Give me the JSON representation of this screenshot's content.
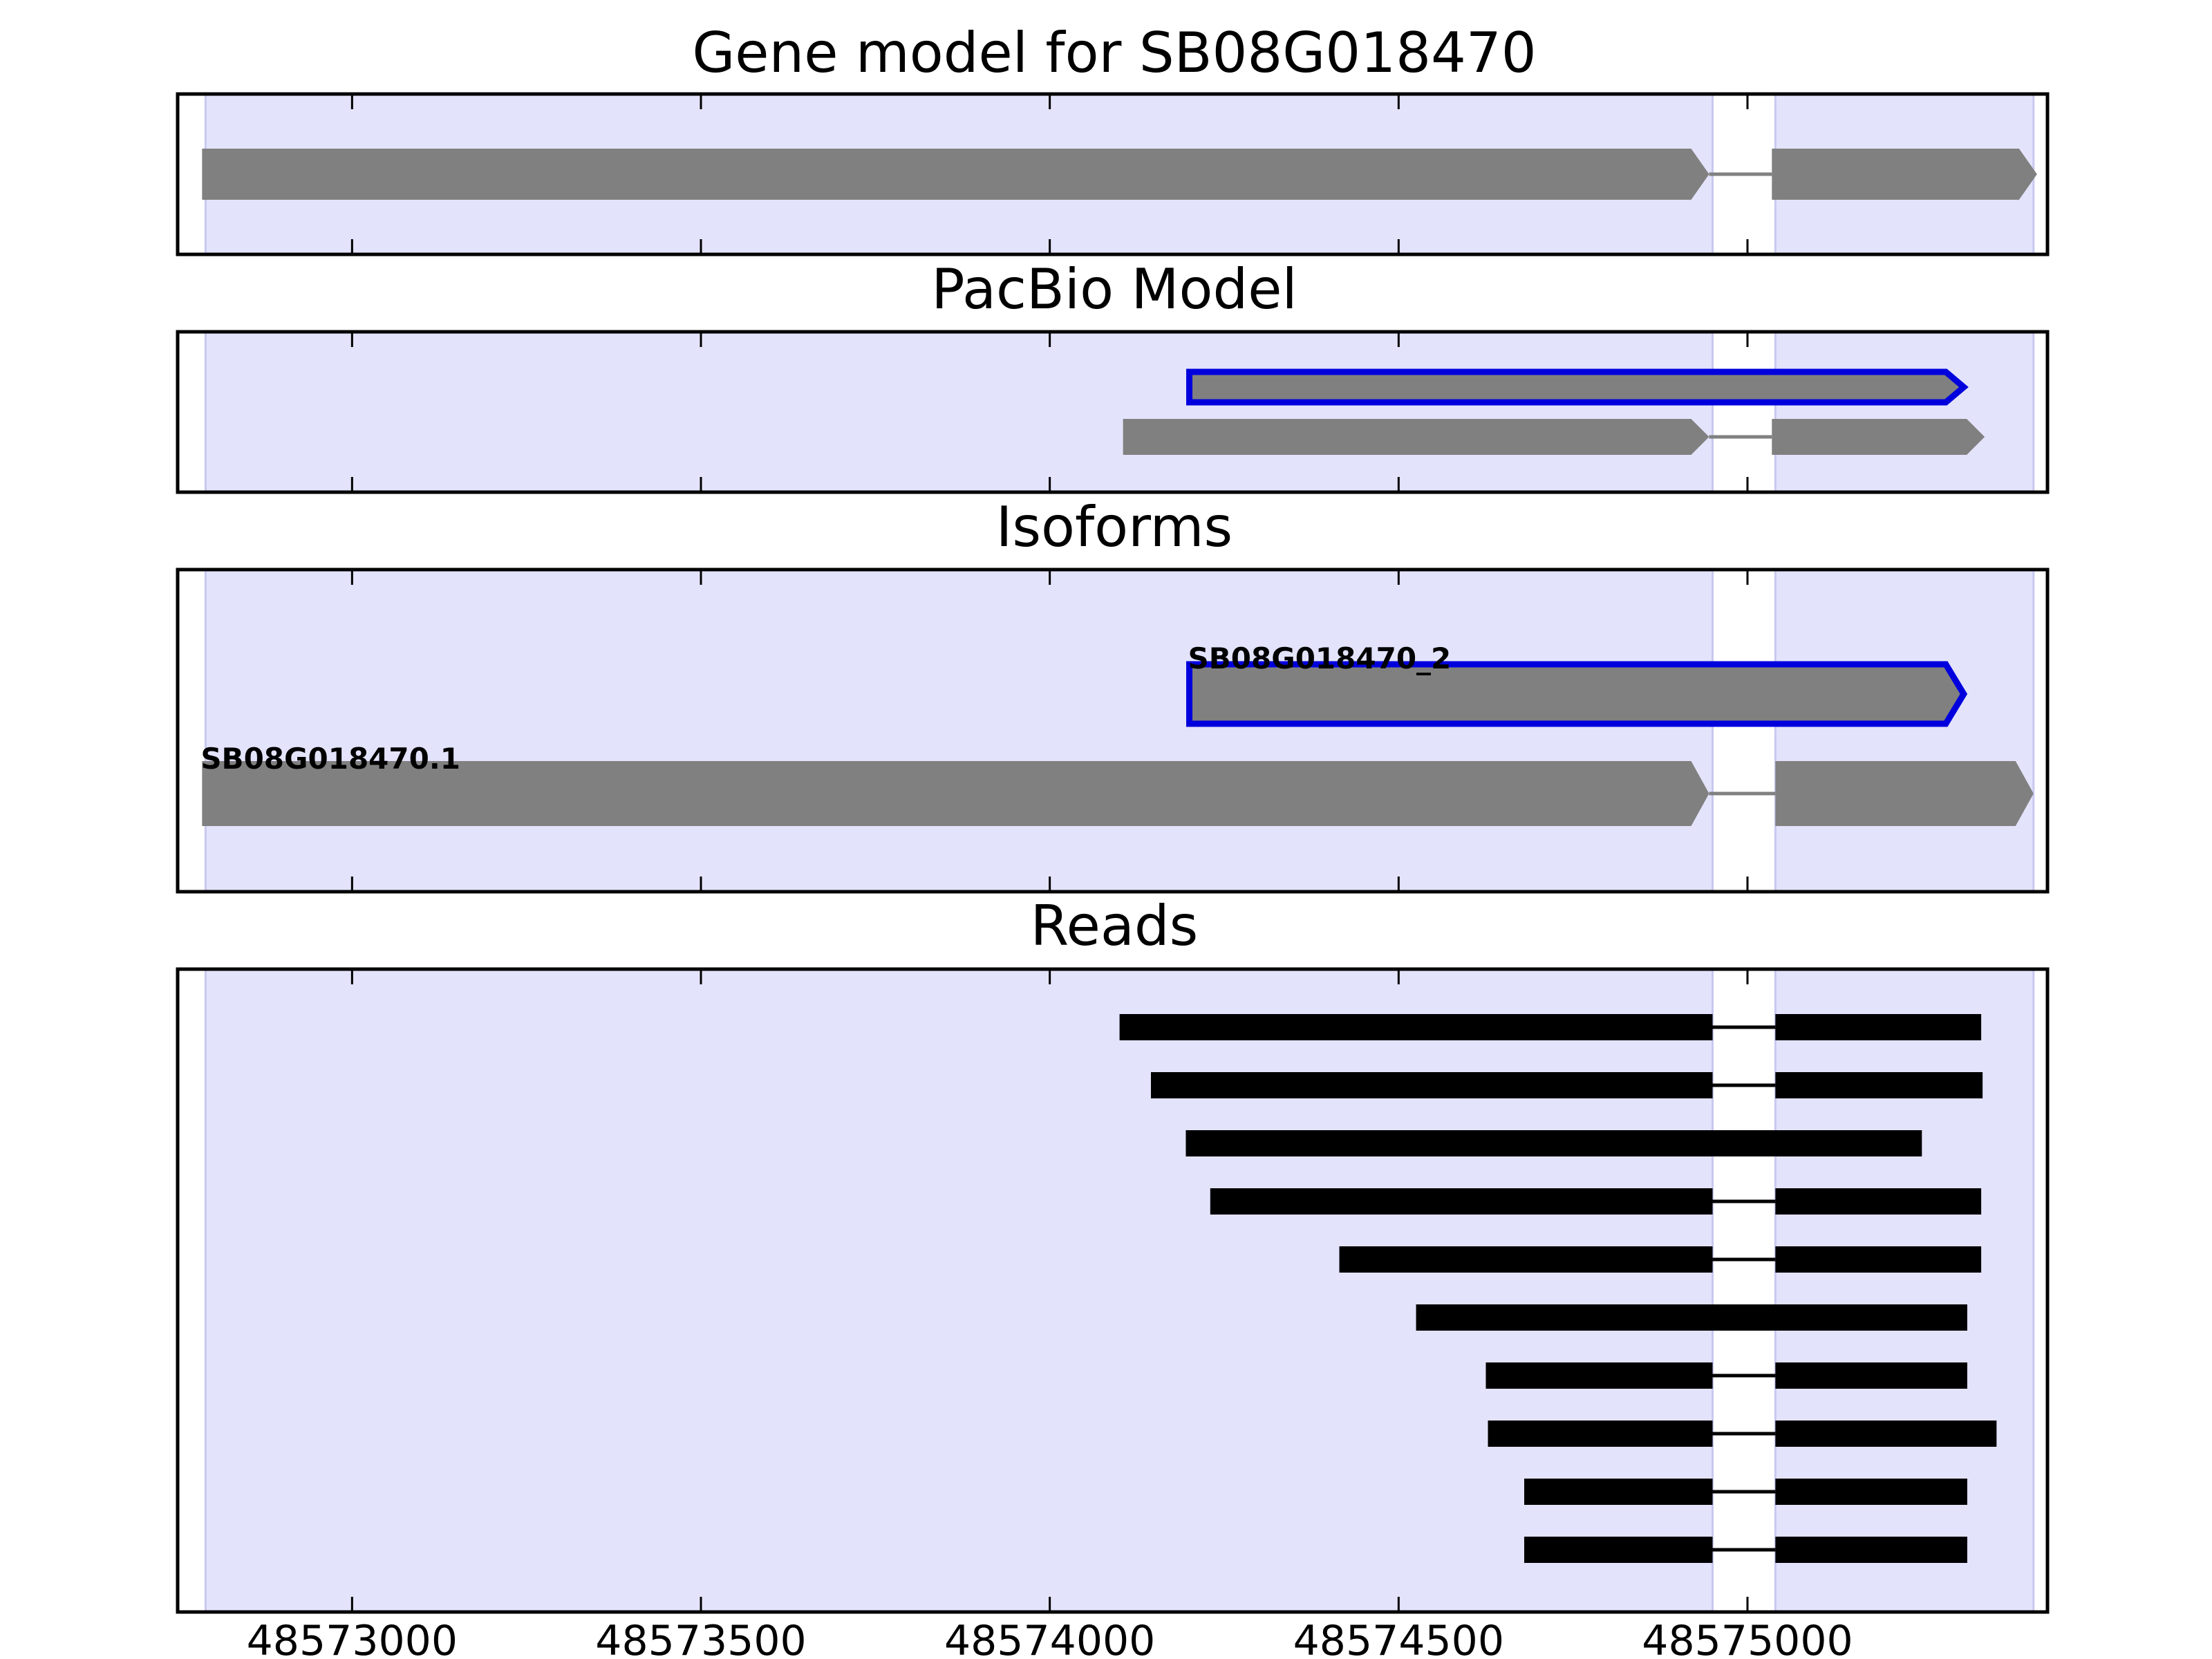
{
  "chart_data": {
    "type": "gene-track",
    "x_range": [
      48572750,
      48575430
    ],
    "x_ticks": [
      48573000,
      48573500,
      48574000,
      48574500,
      48575000
    ],
    "x_tick_labels": [
      "48573000",
      "48573500",
      "48574000",
      "48574500",
      "48575000"
    ],
    "colors": {
      "exon_region": "#e3e3fc",
      "exon_region_edge": "#c8c8f0",
      "feature_fill": "#808080",
      "highlight_edge": "#0000dd",
      "read_fill": "#000000"
    },
    "exon_regions": [
      [
        48572790,
        48574950
      ],
      [
        48575040,
        48575410
      ]
    ],
    "panels": [
      {
        "title": "Gene model for SB08G018470",
        "rows": 1,
        "features": [
          {
            "row": 0,
            "exons": [
              [
                48572785,
                48574945
              ],
              [
                48575035,
                48575415
              ]
            ],
            "highlight": false
          }
        ]
      },
      {
        "title": "PacBio Model",
        "rows": 2,
        "features": [
          {
            "row": 0,
            "exons": [
              [
                48574200,
                48575310
              ]
            ],
            "highlight": true
          },
          {
            "row": 1,
            "exons": [
              [
                48574105,
                48574945
              ],
              [
                48575035,
                48575340
              ]
            ],
            "highlight": false
          }
        ]
      },
      {
        "title": "Isoforms",
        "rows": 2,
        "features": [
          {
            "row": 0,
            "label": "SB08G018470_2",
            "exons": [
              [
                48574200,
                48575310
              ]
            ],
            "highlight": true
          },
          {
            "row": 1,
            "label": "SB08G018470.1",
            "exons": [
              [
                48572785,
                48574945
              ],
              [
                48575040,
                48575410
              ]
            ],
            "highlight": false
          }
        ]
      },
      {
        "title": "Reads",
        "rows": 10,
        "reads": [
          [
            [
              48574100,
              48574950
            ],
            [
              48575040,
              48575335
            ]
          ],
          [
            [
              48574145,
              48574950
            ],
            [
              48575040,
              48575337
            ]
          ],
          [
            [
              48574195,
              48575250
            ]
          ],
          [
            [
              48574230,
              48574950
            ],
            [
              48575040,
              48575335
            ]
          ],
          [
            [
              48574415,
              48574950
            ],
            [
              48575040,
              48575335
            ]
          ],
          [
            [
              48574525,
              48575315
            ]
          ],
          [
            [
              48574625,
              48574950
            ],
            [
              48575040,
              48575315
            ]
          ],
          [
            [
              48574628,
              48574950
            ],
            [
              48575040,
              48575357
            ]
          ],
          [
            [
              48574680,
              48574950
            ],
            [
              48575040,
              48575315
            ]
          ],
          [
            [
              48574680,
              48574950
            ],
            [
              48575040,
              48575315
            ]
          ]
        ]
      }
    ]
  }
}
